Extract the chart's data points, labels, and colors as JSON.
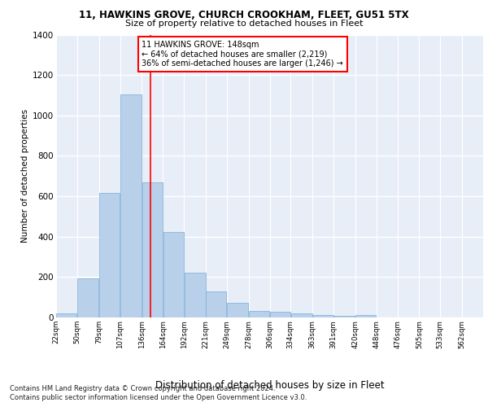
{
  "title1": "11, HAWKINS GROVE, CHURCH CROOKHAM, FLEET, GU51 5TX",
  "title2": "Size of property relative to detached houses in Fleet",
  "xlabel": "Distribution of detached houses by size in Fleet",
  "ylabel": "Number of detached properties",
  "bar_color": "#b8d0ea",
  "bar_edgecolor": "#7aadd4",
  "background_color": "#e8eef8",
  "grid_color": "#ffffff",
  "annotation_box_text": "11 HAWKINS GROVE: 148sqm\n← 64% of detached houses are smaller (2,219)\n36% of semi-detached houses are larger (1,246) →",
  "property_sqm": 148,
  "footer1": "Contains HM Land Registry data © Crown copyright and database right 2024.",
  "footer2": "Contains public sector information licensed under the Open Government Licence v3.0.",
  "bins": [
    22,
    50,
    79,
    107,
    136,
    164,
    192,
    221,
    249,
    278,
    306,
    334,
    363,
    391,
    420,
    448,
    476,
    505,
    533,
    562,
    590
  ],
  "counts": [
    20,
    195,
    615,
    1105,
    670,
    425,
    220,
    130,
    72,
    32,
    30,
    20,
    13,
    8,
    13,
    0,
    0,
    0,
    0,
    0
  ],
  "ylim": [
    0,
    1400
  ],
  "yticks": [
    0,
    200,
    400,
    600,
    800,
    1000,
    1200,
    1400
  ]
}
